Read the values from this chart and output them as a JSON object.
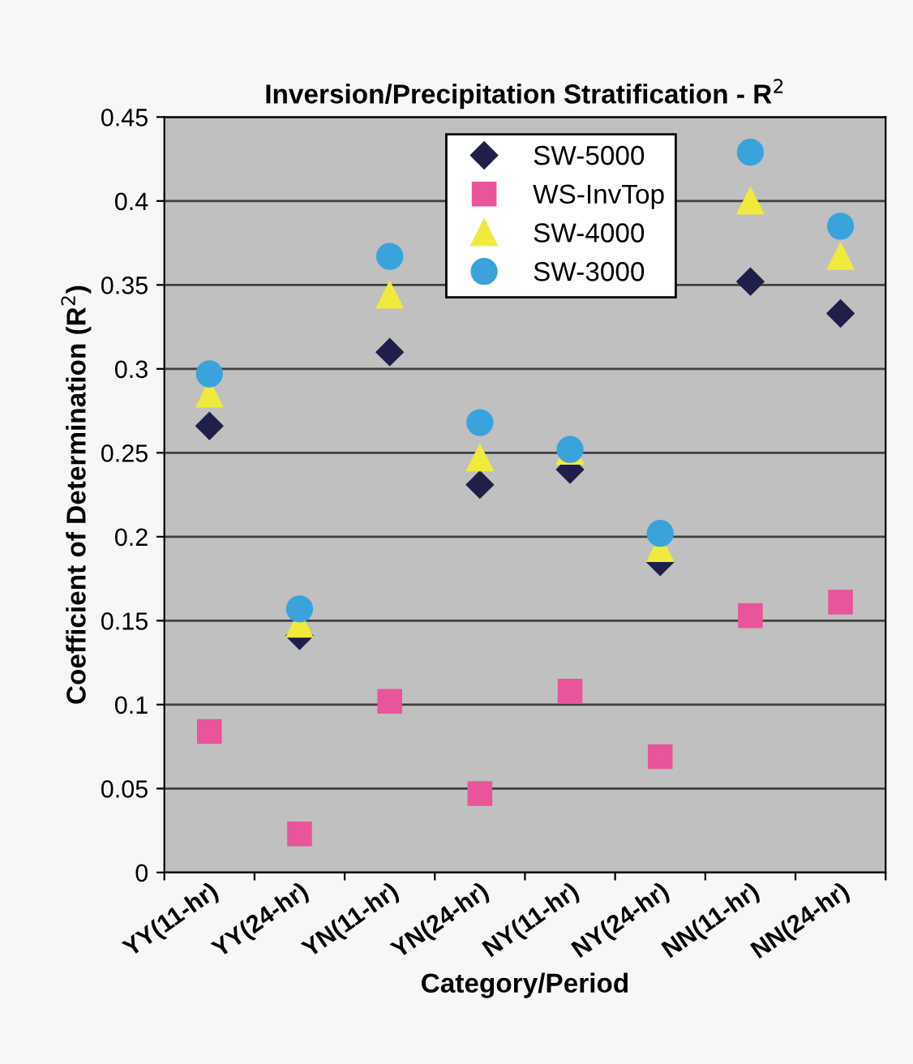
{
  "chart_data": {
    "type": "scatter",
    "title": "Inversion/Precipitation Stratification - R$^{2}$",
    "xlabel": "Category/Period",
    "ylabel": "Coefficient of Determination (R$^{2}$)",
    "categories": [
      "YY(11-hr)",
      "YY(24-hr)",
      "YN(11-hr)",
      "YN(24-hr)",
      "NY(11-hr)",
      "NY(24-hr)",
      "NN(11-hr)",
      "NN(24-hr)"
    ],
    "series": [
      {
        "name": "SW-5000",
        "color": "#1f1f4a",
        "marker": "diamond",
        "values": [
          0.266,
          0.141,
          0.31,
          0.231,
          0.24,
          0.185,
          0.352,
          0.333
        ]
      },
      {
        "name": "WS-InvTop",
        "color": "#e8559a",
        "marker": "square",
        "values": [
          0.084,
          0.023,
          0.102,
          0.047,
          0.108,
          0.069,
          0.153,
          0.161
        ]
      },
      {
        "name": "SW-4000",
        "color": "#f0ea3c",
        "marker": "triangle",
        "values": [
          0.285,
          0.148,
          0.344,
          0.247,
          0.251,
          0.193,
          0.4,
          0.367
        ]
      },
      {
        "name": "SW-3000",
        "color": "#3aa3dc",
        "marker": "circle",
        "values": [
          0.297,
          0.157,
          0.367,
          0.268,
          0.252,
          0.202,
          0.429,
          0.385
        ]
      }
    ],
    "ylim": [
      0,
      0.45
    ],
    "yticks": [
      0,
      0.05,
      0.1,
      0.15,
      0.2,
      0.25,
      0.3,
      0.35,
      0.4,
      0.45
    ],
    "grid": "y",
    "legend": "top"
  }
}
